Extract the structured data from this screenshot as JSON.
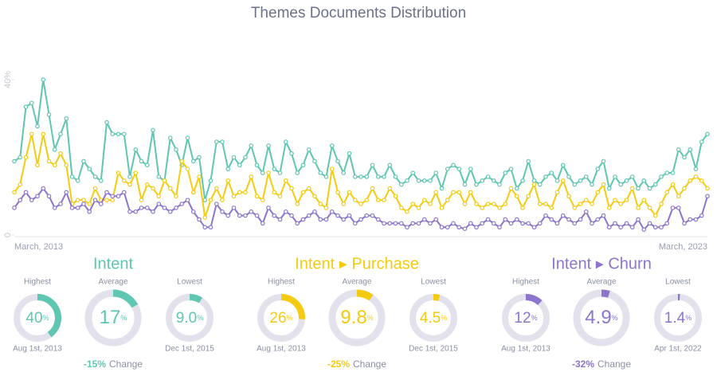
{
  "chart_data": {
    "type": "line",
    "title": "Themes Documents Distribution",
    "categories": [
      "March, 2013",
      null,
      null,
      null,
      null,
      null,
      null,
      null,
      null,
      null,
      null,
      null,
      null,
      null,
      null,
      null,
      null,
      null,
      null,
      null,
      null,
      null,
      null,
      null,
      null,
      null,
      null,
      null,
      null,
      null,
      null,
      null,
      null,
      null,
      null,
      null,
      null,
      null,
      null,
      null,
      null,
      null,
      null,
      null,
      null,
      null,
      null,
      null,
      null,
      null,
      null,
      null,
      null,
      null,
      null,
      null,
      null,
      null,
      null,
      null,
      null,
      null,
      null,
      null,
      null,
      null,
      null,
      null,
      null,
      null,
      null,
      null,
      null,
      null,
      null,
      null,
      null,
      null,
      null,
      null,
      null,
      null,
      null,
      null,
      null,
      null,
      null,
      null,
      null,
      null,
      null,
      null,
      null,
      null,
      null,
      null,
      null,
      null,
      null,
      null,
      null,
      null,
      null,
      null,
      null,
      null,
      null,
      null,
      null,
      null,
      null,
      null,
      null,
      null,
      null,
      null,
      null,
      null,
      null,
      null,
      "March, 2023"
    ],
    "ylim": [
      0,
      40
    ],
    "yticks": [
      0,
      {
        "value": 40,
        "label": "40%"
      }
    ],
    "series": [
      {
        "name": "Intent",
        "color": "#5ec6b1",
        "values": [
          19,
          20,
          33,
          34,
          28,
          40,
          31,
          22,
          26,
          30,
          15,
          14,
          19,
          17,
          15,
          14,
          29,
          26,
          26,
          26,
          15,
          22,
          19,
          18,
          27,
          15,
          14,
          25,
          22,
          18,
          25,
          19,
          20,
          9.0,
          14,
          24,
          24,
          17,
          20,
          18,
          20,
          23,
          18,
          16,
          23,
          17,
          16,
          24,
          21,
          16,
          18,
          22,
          19,
          16,
          15,
          23,
          19,
          16,
          21,
          15,
          15,
          15,
          18,
          15,
          15,
          18,
          15,
          13,
          14,
          16,
          14,
          14,
          14,
          16,
          12,
          17,
          18,
          17,
          13,
          17,
          13,
          14,
          15,
          14,
          13,
          16,
          17,
          12,
          14,
          19,
          14,
          13,
          15,
          16,
          14,
          18,
          15,
          13,
          14,
          15,
          13,
          17,
          19,
          12,
          15,
          13,
          14,
          15,
          12,
          14,
          12,
          13,
          15,
          16,
          16,
          22,
          20,
          22,
          17,
          24,
          26
        ]
      },
      {
        "name": "Intent ▸ Purchase",
        "color": "#f4cb10",
        "values": [
          11,
          13,
          20,
          26,
          18,
          26,
          19,
          18,
          21,
          18,
          8,
          9,
          9,
          8,
          12,
          9,
          9,
          9,
          16,
          14,
          13,
          16,
          9,
          13,
          12,
          10,
          14,
          12,
          10,
          19,
          17,
          11,
          15,
          4.5,
          9,
          12,
          9,
          14,
          10,
          11,
          11,
          15,
          10,
          9,
          16,
          11,
          10,
          14,
          12,
          8,
          11,
          12,
          10,
          8,
          7,
          17,
          11,
          8,
          11,
          9,
          8,
          9,
          12,
          9,
          9,
          12,
          10,
          7,
          6,
          8,
          7,
          9,
          8,
          11,
          7,
          9,
          11,
          11,
          8,
          11,
          8,
          7,
          8,
          8,
          7,
          8,
          12,
          10,
          7,
          10,
          13,
          8,
          8,
          7,
          11,
          14,
          10,
          7,
          8,
          9,
          8,
          11,
          13,
          7,
          9,
          8,
          9,
          12,
          7,
          9,
          7,
          5,
          8,
          11,
          13,
          10,
          12,
          14,
          15,
          14,
          12
        ]
      },
      {
        "name": "Intent ▸ Churn",
        "color": "#8d74cc",
        "values": [
          7,
          9,
          11,
          9,
          10,
          12,
          10,
          7,
          8,
          11,
          7,
          7,
          8,
          6,
          9,
          8,
          11,
          10,
          10,
          11,
          6,
          6,
          7,
          7,
          6,
          8,
          7,
          6,
          7,
          8,
          9,
          6,
          4,
          2,
          2,
          8,
          6,
          5,
          7,
          5,
          5,
          6,
          5,
          3,
          7,
          5,
          4,
          6,
          5,
          3,
          4,
          5,
          6,
          4,
          4,
          6,
          5,
          4,
          5,
          3,
          4,
          5,
          5,
          4,
          3,
          3,
          3,
          3,
          2,
          3,
          3,
          4,
          3,
          4,
          2,
          2,
          3,
          2,
          1.6,
          3,
          2,
          3,
          4,
          3,
          2,
          4,
          3,
          4,
          3,
          3,
          2,
          3,
          5,
          4,
          3,
          5,
          4,
          3,
          4,
          6,
          3,
          4,
          5,
          2,
          3,
          2,
          3,
          2,
          4,
          1.4,
          3,
          2,
          2,
          3,
          7,
          7,
          3,
          4,
          4,
          5,
          10
        ]
      }
    ]
  },
  "summary": [
    {
      "stats": [
        {
          "name": "Highest",
          "value": 40,
          "unit": "%",
          "date": "Aug 1st, 2013"
        },
        {
          "name": "Average",
          "value": 17,
          "unit": "%"
        },
        {
          "name": "Lowest",
          "value": 9.0,
          "value_label": "9.0",
          "unit": "%",
          "date": "Dec 1st, 2015"
        }
      ],
      "change": {
        "value": -15,
        "label": "-15%"
      },
      "change_text": "Change"
    },
    {
      "stats": [
        {
          "name": "Highest",
          "value": 26,
          "unit": "%",
          "date": "Aug 1st, 2013"
        },
        {
          "name": "Average",
          "value": 9.8,
          "unit": "%"
        },
        {
          "name": "Lowest",
          "value": 4.5,
          "unit": "%",
          "date": "Dec 1st, 2015"
        }
      ],
      "change": {
        "value": -25,
        "label": "-25%"
      },
      "change_text": "Change"
    },
    {
      "stats": [
        {
          "name": "Highest",
          "value": 12,
          "unit": "%",
          "date": "Aug 1st, 2013"
        },
        {
          "name": "Average",
          "value": 4.9,
          "unit": "%"
        },
        {
          "name": "Lowest",
          "value": 1.4,
          "unit": "%",
          "date": "Apr 1st, 2022"
        }
      ],
      "change": {
        "value": -32,
        "label": "-32%"
      },
      "change_text": "Change"
    }
  ]
}
